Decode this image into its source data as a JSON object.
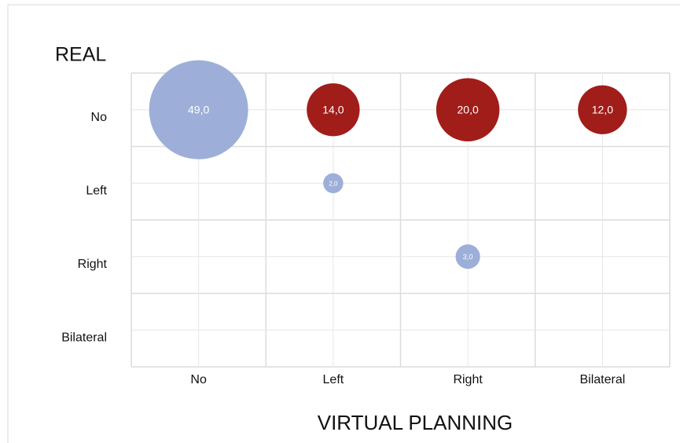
{
  "chart_data": {
    "type": "bubble",
    "y_axis_label": "REAL",
    "x_axis_label": "VIRTUAL PLANNING",
    "x_categories": [
      "No",
      "Left",
      "Right",
      "Bilateral"
    ],
    "y_categories": [
      "No",
      "Left",
      "Right",
      "Bilateral"
    ],
    "grid": true,
    "series": [
      {
        "color": "#9dafd8",
        "x": [
          "No",
          "Left",
          "Right"
        ],
        "y": [
          "No",
          "Left",
          "Right"
        ],
        "values": [
          49,
          2,
          3
        ],
        "value_labels": [
          "49,0",
          "2,0",
          "3,0"
        ]
      },
      {
        "color": "#a11d1a",
        "x": [
          "Left",
          "Right",
          "Bilateral"
        ],
        "y": [
          "No",
          "No",
          "No"
        ],
        "values": [
          14,
          20,
          12
        ],
        "value_labels": [
          "14,0",
          "20,0",
          "12,0"
        ]
      }
    ]
  }
}
